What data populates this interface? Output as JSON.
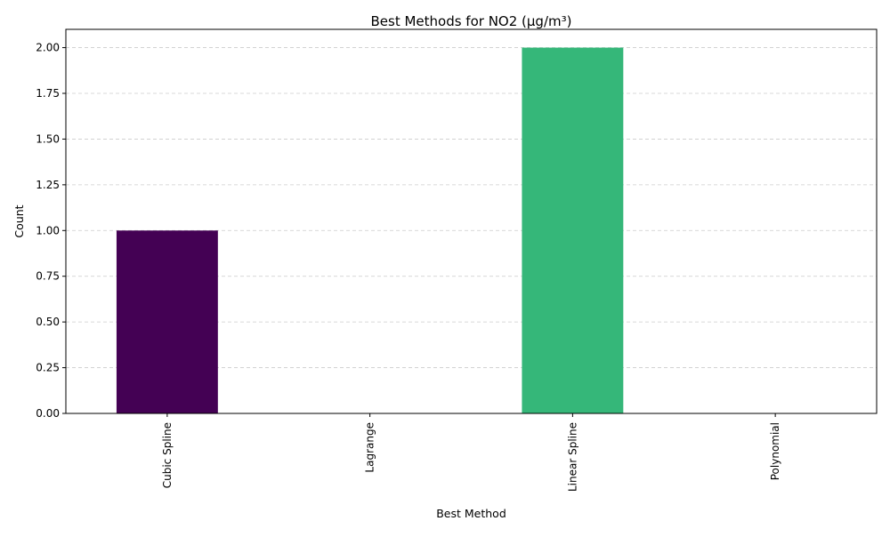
{
  "chart_data": {
    "type": "bar",
    "title": "Best Methods for NO2 (µg/m³)",
    "xlabel": "Best Method",
    "ylabel": "Count",
    "categories": [
      "Cubic Spline",
      "Lagrange",
      "Linear Spline",
      "Polynomial"
    ],
    "values": [
      1,
      0,
      2,
      0
    ],
    "bar_colors": [
      "#440154",
      "#31688e",
      "#35b779",
      "#fde725"
    ],
    "ylim": [
      0,
      2.1
    ],
    "yticks": [
      0.0,
      0.25,
      0.5,
      0.75,
      1.0,
      1.25,
      1.5,
      1.75,
      2.0
    ],
    "ytick_labels": [
      "0.00",
      "0.25",
      "0.50",
      "0.75",
      "1.00",
      "1.25",
      "1.50",
      "1.75",
      "2.00"
    ],
    "grid": {
      "axis": "y",
      "style": "dashed",
      "color": "#cccccc"
    },
    "xtick_rotation": 90
  }
}
